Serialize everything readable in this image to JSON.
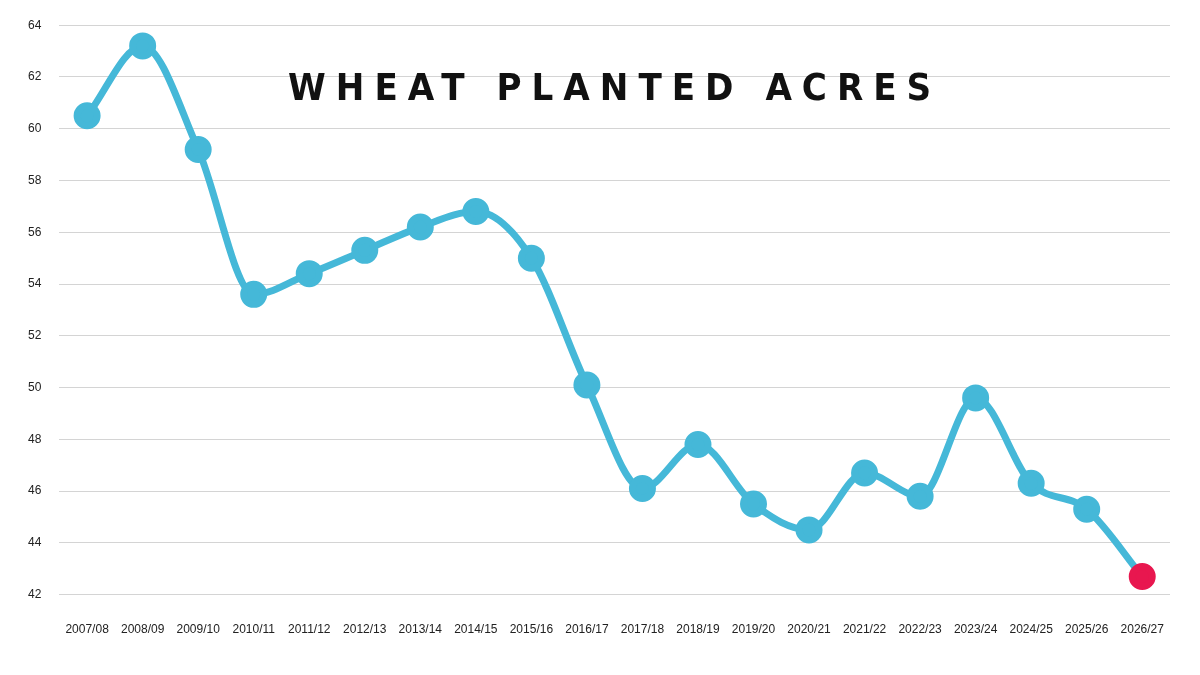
{
  "chart_data": {
    "type": "line",
    "title": "WHEAT PLANTED ACRES",
    "categories": [
      "2007/08",
      "2008/09",
      "2009/10",
      "2010/11",
      "2011/12",
      "2012/13",
      "2013/14",
      "2014/15",
      "2015/16",
      "2016/17",
      "2017/18",
      "2018/19",
      "2019/20",
      "2020/21",
      "2021/22",
      "2022/23",
      "2023/24",
      "2024/25",
      "2025/26",
      "2026/27"
    ],
    "series": [
      {
        "color": "#45b8d8",
        "colors": [
          "#45b8d8",
          "#45b8d8",
          "#45b8d8",
          "#45b8d8",
          "#45b8d8",
          "#45b8d8",
          "#45b8d8",
          "#45b8d8",
          "#45b8d8",
          "#45b8d8",
          "#45b8d8",
          "#45b8d8",
          "#45b8d8",
          "#45b8d8",
          "#45b8d8",
          "#45b8d8",
          "#45b8d8",
          "#45b8d8",
          "#45b8d8",
          "#e8174f"
        ],
        "values": [
          60.5,
          63.2,
          59.2,
          53.6,
          54.4,
          55.3,
          56.2,
          56.8,
          55.0,
          50.1,
          46.1,
          47.8,
          45.5,
          44.5,
          46.7,
          45.8,
          49.6,
          46.3,
          45.3,
          42.7
        ]
      }
    ],
    "ylim": [
      42,
      64
    ],
    "yticks": [
      42,
      44,
      46,
      48,
      50,
      52,
      54,
      56,
      58,
      60,
      62,
      64
    ],
    "grid": "y",
    "legend": false,
    "marker": "circle",
    "line_style": "solid"
  }
}
